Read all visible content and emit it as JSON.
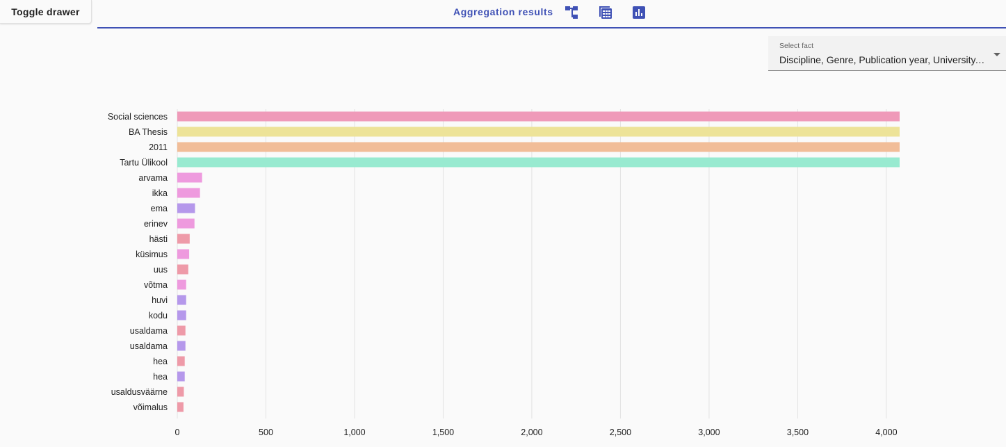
{
  "toolbar": {
    "toggle_label": "Toggle drawer",
    "title": "Aggregation results",
    "icons": [
      "tree-view-icon",
      "table-view-icon",
      "bar-chart-icon"
    ],
    "accent": "#3f51b5"
  },
  "fact_select": {
    "label": "Select fact",
    "value": "Discipline, Genre, Publication year, University, se…"
  },
  "chart_data": {
    "type": "bar",
    "orientation": "horizontal",
    "xlim": [
      0,
      4075
    ],
    "xticks": [
      0,
      500,
      1000,
      1500,
      2000,
      2500,
      3000,
      3500,
      4000
    ],
    "xtick_labels": [
      "0",
      "500",
      "1,000",
      "1,500",
      "2,000",
      "2,500",
      "3,000",
      "3,500",
      "4,000"
    ],
    "grid": true,
    "categories": [
      "Social sciences",
      "BA Thesis",
      "2011",
      "Tartu Ülikool",
      "arvama",
      "ikka",
      "ema",
      "erinev",
      "hästi",
      "küsimus",
      "uus",
      "võtma",
      "huvi",
      "kodu",
      "usaldama",
      "usaldama",
      "hea",
      "hea",
      "usaldusväärne",
      "võimalus"
    ],
    "values": [
      4075,
      4075,
      4075,
      4075,
      140,
      128,
      100,
      97,
      70,
      67,
      62,
      50,
      50,
      50,
      46,
      46,
      42,
      42,
      37,
      35
    ],
    "colors": [
      "#ef9ab9",
      "#ede398",
      "#f1bd98",
      "#98ead0",
      "#ee9ade",
      "#ee9ade",
      "#b598eb",
      "#ee9ade",
      "#ee9aa8",
      "#ee9ade",
      "#ee9aa8",
      "#ee9ade",
      "#b598eb",
      "#b598eb",
      "#ee9aa8",
      "#b598eb",
      "#ee9aa8",
      "#b598eb",
      "#ee9aa8",
      "#ee9aa8"
    ]
  }
}
